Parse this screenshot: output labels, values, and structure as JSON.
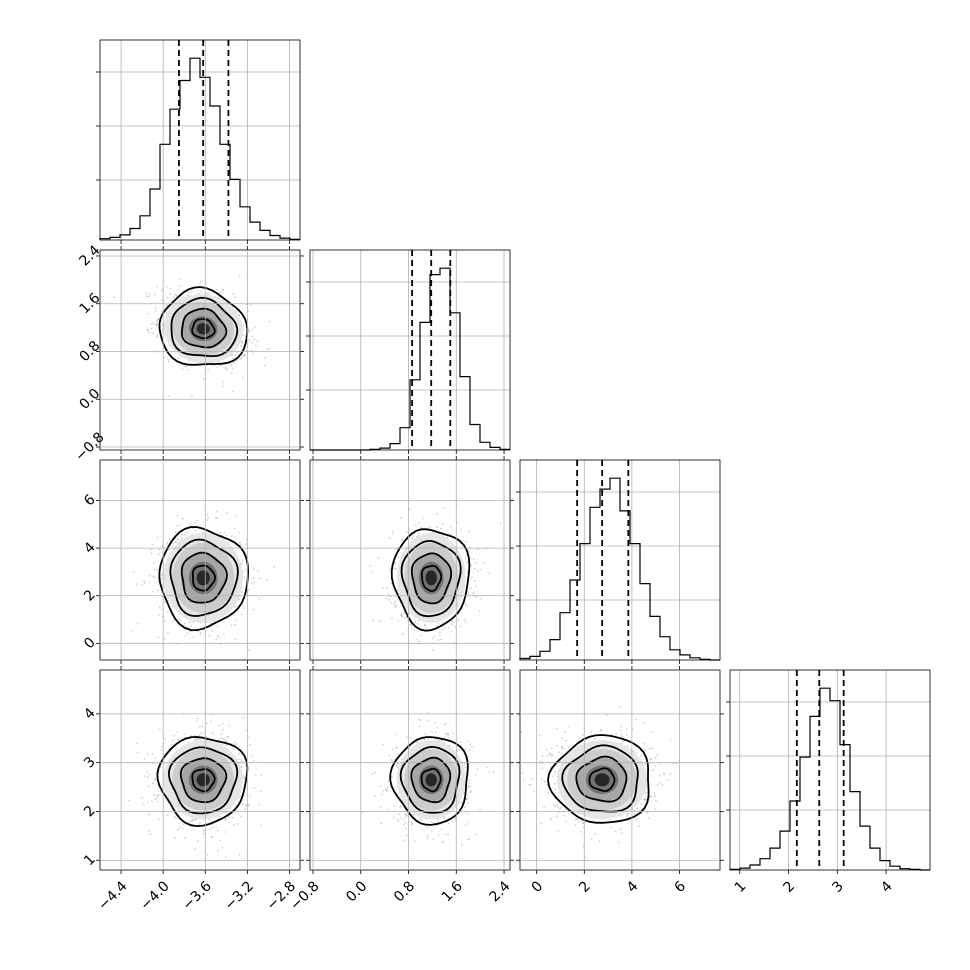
{
  "chart_data": {
    "type": "corner",
    "title": "",
    "grid": true,
    "colors": {
      "line": "#000000",
      "grid": "#b0b0b0",
      "points": "#7f7f7f",
      "density_max": "#000000"
    },
    "params": [
      {
        "name": "",
        "range": [
          -4.6,
          -2.7
        ],
        "mean": -3.62,
        "sd": 0.21,
        "quantiles": [
          -3.85,
          -3.62,
          -3.38
        ],
        "ticks": [
          -4.4,
          -4.0,
          -3.6,
          -3.2,
          -2.8
        ],
        "tick_labels": [
          "−4.4",
          "−4.0",
          "−3.6",
          "−3.2",
          "−2.8"
        ],
        "hist_edges_start": -4.6,
        "hist_bin_width": 0.095,
        "hist_counts": [
          2,
          4,
          8,
          18,
          38,
          80,
          150,
          205,
          250,
          285,
          255,
          210,
          150,
          95,
          52,
          28,
          15,
          7,
          3,
          1
        ]
      },
      {
        "name": "",
        "range": [
          -0.85,
          2.5
        ],
        "mean": 1.18,
        "sd": 0.32,
        "quantiles": [
          0.86,
          1.18,
          1.5
        ],
        "ticks": [
          -0.8,
          0.0,
          0.8,
          1.6,
          2.4
        ],
        "tick_labels": [
          "−0.8",
          "0.0",
          "0.8",
          "1.6",
          "2.4"
        ],
        "hist_edges_start": -0.85,
        "hist_bin_width": 0.1675,
        "hist_counts": [
          0,
          0,
          0,
          0,
          0,
          0,
          1,
          3,
          10,
          35,
          110,
          200,
          275,
          285,
          215,
          115,
          40,
          12,
          4,
          1
        ]
      },
      {
        "name": "",
        "range": [
          -0.7,
          7.7
        ],
        "mean": 2.75,
        "sd": 1.05,
        "quantiles": [
          1.7,
          2.75,
          3.85
        ],
        "ticks": [
          0,
          2,
          4,
          6
        ],
        "tick_labels": [
          "0",
          "2",
          "4",
          "6"
        ],
        "hist_edges_start": -0.7,
        "hist_bin_width": 0.42,
        "hist_counts": [
          2,
          5,
          12,
          28,
          65,
          110,
          160,
          210,
          235,
          250,
          205,
          160,
          105,
          60,
          32,
          14,
          7,
          3,
          1,
          0
        ]
      },
      {
        "name": "",
        "range": [
          0.8,
          4.9
        ],
        "mean": 2.65,
        "sd": 0.45,
        "quantiles": [
          2.17,
          2.63,
          3.13
        ],
        "ticks": [
          1,
          2,
          3,
          4
        ],
        "tick_labels": [
          "1",
          "2",
          "3",
          "4"
        ],
        "hist_edges_start": 0.8,
        "hist_bin_width": 0.205,
        "hist_counts": [
          1,
          3,
          8,
          18,
          35,
          62,
          110,
          180,
          245,
          290,
          270,
          200,
          125,
          70,
          35,
          15,
          6,
          2,
          1,
          0
        ]
      }
    ],
    "correlations": [
      {
        "pair": [
          0,
          1
        ],
        "rho": -0.3
      },
      {
        "pair": [
          0,
          2
        ],
        "rho": 0.0
      },
      {
        "pair": [
          1,
          2
        ],
        "rho": 0.0
      },
      {
        "pair": [
          0,
          3
        ],
        "rho": 0.0
      },
      {
        "pair": [
          1,
          3
        ],
        "rho": 0.0
      },
      {
        "pair": [
          2,
          3
        ],
        "rho": 0.0
      }
    ],
    "contour_levels_sigma": [
      0.5,
      1.0,
      1.5,
      2.0
    ]
  }
}
